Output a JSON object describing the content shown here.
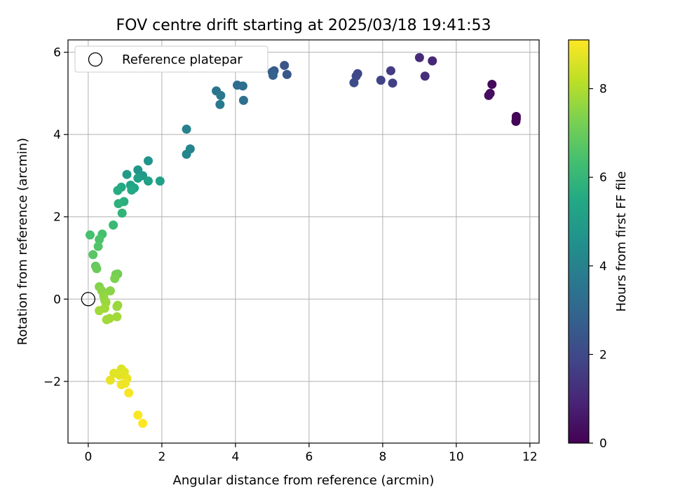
{
  "chart_data": {
    "type": "scatter",
    "title": "FOV centre drift starting at 2025/03/18 19:41:53",
    "xlabel": "Angular distance from reference (arcmin)",
    "ylabel": "Rotation from reference (arcmin)",
    "xlim": [
      -0.55,
      12.25
    ],
    "ylim": [
      -3.5,
      6.3
    ],
    "xticks": [
      0,
      2,
      4,
      6,
      8,
      10,
      12
    ],
    "yticks": [
      -2,
      0,
      2,
      4,
      6
    ],
    "grid": true,
    "legend": {
      "placement": "top-left",
      "entries": [
        "Reference platepar"
      ]
    },
    "reference_point": {
      "x": 0,
      "y": 0
    },
    "colorbar": {
      "label": "Hours from first FF file",
      "range": [
        0,
        9.1
      ],
      "ticks": [
        0,
        2,
        4,
        6,
        8
      ],
      "colormap": "viridis"
    },
    "points": [
      {
        "x": 11.63,
        "y": 4.44,
        "c": 0.05
      },
      {
        "x": 11.63,
        "y": 4.38,
        "c": 0.08
      },
      {
        "x": 11.62,
        "y": 4.32,
        "c": 0.1
      },
      {
        "x": 10.97,
        "y": 5.22,
        "c": 0.2
      },
      {
        "x": 10.92,
        "y": 5.0,
        "c": 0.3
      },
      {
        "x": 10.88,
        "y": 4.95,
        "c": 0.35
      },
      {
        "x": 9.35,
        "y": 5.79,
        "c": 1.0
      },
      {
        "x": 9.0,
        "y": 5.87,
        "c": 1.1
      },
      {
        "x": 9.15,
        "y": 5.42,
        "c": 1.2
      },
      {
        "x": 8.22,
        "y": 5.55,
        "c": 1.6
      },
      {
        "x": 8.27,
        "y": 5.25,
        "c": 1.7
      },
      {
        "x": 7.95,
        "y": 5.32,
        "c": 1.8
      },
      {
        "x": 7.32,
        "y": 5.48,
        "c": 1.9
      },
      {
        "x": 7.28,
        "y": 5.42,
        "c": 2.0
      },
      {
        "x": 7.22,
        "y": 5.26,
        "c": 2.1
      },
      {
        "x": 5.33,
        "y": 5.68,
        "c": 2.4
      },
      {
        "x": 5.4,
        "y": 5.46,
        "c": 2.5
      },
      {
        "x": 5.05,
        "y": 5.55,
        "c": 2.6
      },
      {
        "x": 5.0,
        "y": 5.52,
        "c": 2.7
      },
      {
        "x": 5.02,
        "y": 5.44,
        "c": 2.8
      },
      {
        "x": 4.05,
        "y": 5.2,
        "c": 3.2
      },
      {
        "x": 4.2,
        "y": 5.18,
        "c": 3.3
      },
      {
        "x": 4.22,
        "y": 4.83,
        "c": 3.4
      },
      {
        "x": 3.48,
        "y": 5.06,
        "c": 3.5
      },
      {
        "x": 3.6,
        "y": 4.95,
        "c": 3.6
      },
      {
        "x": 3.58,
        "y": 4.73,
        "c": 3.7
      },
      {
        "x": 2.67,
        "y": 4.13,
        "c": 4.0
      },
      {
        "x": 2.77,
        "y": 3.65,
        "c": 4.1
      },
      {
        "x": 2.67,
        "y": 3.52,
        "c": 4.2
      },
      {
        "x": 1.63,
        "y": 3.36,
        "c": 4.7
      },
      {
        "x": 1.35,
        "y": 3.14,
        "c": 4.8
      },
      {
        "x": 1.48,
        "y": 3.0,
        "c": 4.9
      },
      {
        "x": 1.05,
        "y": 3.03,
        "c": 5.0
      },
      {
        "x": 1.35,
        "y": 2.94,
        "c": 5.1
      },
      {
        "x": 1.95,
        "y": 2.87,
        "c": 5.1
      },
      {
        "x": 1.63,
        "y": 2.87,
        "c": 5.2
      },
      {
        "x": 1.15,
        "y": 2.77,
        "c": 5.3
      },
      {
        "x": 1.25,
        "y": 2.7,
        "c": 5.4
      },
      {
        "x": 0.9,
        "y": 2.72,
        "c": 5.5
      },
      {
        "x": 1.18,
        "y": 2.65,
        "c": 5.5
      },
      {
        "x": 0.8,
        "y": 2.64,
        "c": 5.6
      },
      {
        "x": 0.97,
        "y": 2.37,
        "c": 5.7
      },
      {
        "x": 0.82,
        "y": 2.32,
        "c": 5.8
      },
      {
        "x": 0.92,
        "y": 2.09,
        "c": 5.9
      },
      {
        "x": 0.68,
        "y": 1.8,
        "c": 6.1
      },
      {
        "x": 0.05,
        "y": 1.56,
        "c": 6.4
      },
      {
        "x": 0.38,
        "y": 1.58,
        "c": 6.4
      },
      {
        "x": 0.3,
        "y": 1.45,
        "c": 6.5
      },
      {
        "x": 0.27,
        "y": 1.28,
        "c": 6.6
      },
      {
        "x": 0.13,
        "y": 1.08,
        "c": 6.7
      },
      {
        "x": 0.2,
        "y": 0.8,
        "c": 6.9
      },
      {
        "x": 0.23,
        "y": 0.74,
        "c": 7.0
      },
      {
        "x": 0.8,
        "y": 0.61,
        "c": 7.1
      },
      {
        "x": 0.75,
        "y": 0.6,
        "c": 7.2
      },
      {
        "x": 0.72,
        "y": 0.5,
        "c": 7.3
      },
      {
        "x": 0.3,
        "y": 0.3,
        "c": 7.4
      },
      {
        "x": 0.37,
        "y": 0.2,
        "c": 7.5
      },
      {
        "x": 0.6,
        "y": 0.2,
        "c": 7.5
      },
      {
        "x": 0.42,
        "y": 0.08,
        "c": 7.6
      },
      {
        "x": 0.45,
        "y": -0.03,
        "c": 7.6
      },
      {
        "x": 0.48,
        "y": -0.08,
        "c": 7.7
      },
      {
        "x": 0.8,
        "y": -0.15,
        "c": 7.7
      },
      {
        "x": 0.78,
        "y": -0.18,
        "c": 7.7
      },
      {
        "x": 0.45,
        "y": -0.22,
        "c": 7.8
      },
      {
        "x": 0.3,
        "y": -0.28,
        "c": 7.8
      },
      {
        "x": 0.78,
        "y": -0.43,
        "c": 7.8
      },
      {
        "x": 0.58,
        "y": -0.47,
        "c": 7.8
      },
      {
        "x": 0.5,
        "y": -0.5,
        "c": 7.8
      },
      {
        "x": 0.9,
        "y": -1.7,
        "c": 8.6
      },
      {
        "x": 0.98,
        "y": -1.77,
        "c": 8.7
      },
      {
        "x": 0.7,
        "y": -1.8,
        "c": 8.7
      },
      {
        "x": 0.85,
        "y": -1.85,
        "c": 8.7
      },
      {
        "x": 1.05,
        "y": -1.93,
        "c": 8.8
      },
      {
        "x": 0.6,
        "y": -1.97,
        "c": 8.8
      },
      {
        "x": 0.9,
        "y": -2.08,
        "c": 8.9
      },
      {
        "x": 1.0,
        "y": -2.05,
        "c": 8.9
      },
      {
        "x": 1.1,
        "y": -2.28,
        "c": 9.0
      },
      {
        "x": 1.35,
        "y": -2.82,
        "c": 9.05
      },
      {
        "x": 1.48,
        "y": -3.02,
        "c": 9.1
      }
    ]
  }
}
